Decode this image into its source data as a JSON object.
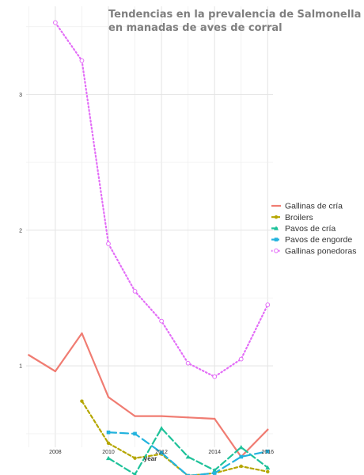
{
  "chart_data": {
    "type": "line",
    "title_lines": [
      "Tendencias en la prevalencia de Salmonella",
      "en manadas de aves de corral"
    ],
    "xlabel": "year",
    "ylabel": "",
    "x_ticks": [
      2008,
      2010,
      2012,
      2014,
      2016
    ],
    "y_ticks": [
      1,
      2,
      3
    ],
    "xlim": [
      2006.9,
      2016.2
    ],
    "ylim": [
      0.4,
      3.65
    ],
    "grid": true,
    "legend_position": "right",
    "series": [
      {
        "name": "Gallinas de cría",
        "color": "#f07c72",
        "dash": "solid",
        "marker": "none",
        "x": [
          2007,
          2008,
          2009,
          2010,
          2011,
          2012,
          2013,
          2014,
          2015,
          2016
        ],
        "y": [
          1.08,
          0.96,
          1.24,
          0.77,
          0.63,
          0.63,
          0.62,
          0.61,
          0.33,
          0.53
        ]
      },
      {
        "name": "Broilers",
        "color": "#b5a600",
        "dash": "4,3",
        "marker": "circle",
        "x": [
          2009,
          2010,
          2011,
          2012,
          2013,
          2014,
          2015,
          2016
        ],
        "y": [
          0.74,
          0.43,
          0.32,
          0.35,
          0.19,
          0.21,
          0.26,
          0.22
        ]
      },
      {
        "name": "Pavos de cría",
        "color": "#1fc29a",
        "dash": "8,4",
        "marker": "triangle",
        "x": [
          2010,
          2011,
          2012,
          2013,
          2014,
          2015,
          2016
        ],
        "y": [
          0.32,
          0.2,
          0.54,
          0.33,
          0.23,
          0.4,
          0.25
        ]
      },
      {
        "name": "Pavos de engorde",
        "color": "#23b3de",
        "dash": "10,5",
        "marker": "square",
        "x": [
          2010,
          2011,
          2012,
          2013,
          2014,
          2015,
          2016
        ],
        "y": [
          0.51,
          0.5,
          0.36,
          0.19,
          0.21,
          0.33,
          0.37
        ]
      },
      {
        "name": "Gallinas ponedoras",
        "color": "#e36ef7",
        "dash": "1.5,3",
        "marker": "circle-open",
        "x": [
          2008,
          2009,
          2010,
          2011,
          2012,
          2013,
          2014,
          2015,
          2016
        ],
        "y": [
          3.53,
          3.25,
          1.9,
          1.55,
          1.33,
          1.02,
          0.92,
          1.05,
          1.45
        ]
      }
    ]
  }
}
